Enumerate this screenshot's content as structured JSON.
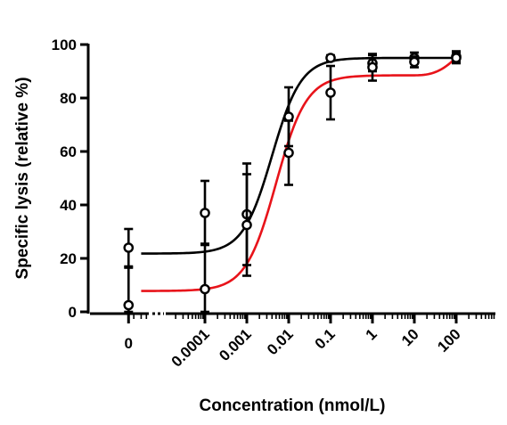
{
  "chart_data": {
    "type": "scatter",
    "xlabel": "Concentration (nmol/L)",
    "ylabel": "Specific lysis (relative %)",
    "xscale": "log",
    "xlim": [
      5e-07,
      800
    ],
    "ylim": [
      0,
      100
    ],
    "x_tick_values": [
      1.5e-06,
      0.0001,
      0.001,
      0.01,
      0.1,
      1,
      10,
      100
    ],
    "x_tick_labels": [
      "0",
      "0.0001",
      "0.001",
      "0.01",
      "0.1",
      "1",
      "10",
      "100"
    ],
    "y_tick_values": [
      0,
      20,
      40,
      60,
      80,
      100
    ],
    "y_tick_labels": [
      "0",
      "20",
      "40",
      "60",
      "80",
      "100"
    ],
    "zero_label_note": "first x tick labeled 0 represents zero concentration on an axis break",
    "points": [
      {
        "x": 1.5e-06,
        "y": 24,
        "err": 7
      },
      {
        "x": 1.5e-06,
        "y": 2.5,
        "err": 14
      },
      {
        "x": 0.0001,
        "y": 37,
        "err": 12
      },
      {
        "x": 0.0001,
        "y": 8.5,
        "err": 17
      },
      {
        "x": 0.001,
        "y": 36.5,
        "err": 19
      },
      {
        "x": 0.001,
        "y": 32.5,
        "err": 19
      },
      {
        "x": 0.01,
        "y": 73,
        "err": 11
      },
      {
        "x": 0.01,
        "y": 59.5,
        "err": 12
      },
      {
        "x": 0.1,
        "y": 95,
        "err": 1
      },
      {
        "x": 0.1,
        "y": 82,
        "err": 10
      },
      {
        "x": 1,
        "y": 93,
        "err": 3
      },
      {
        "x": 1,
        "y": 91.5,
        "err": 5
      },
      {
        "x": 10,
        "y": 95,
        "err": 2
      },
      {
        "x": 10,
        "y": 93.5,
        "err": 2
      },
      {
        "x": 100,
        "y": 95.5,
        "err": 2
      },
      {
        "x": 100,
        "y": 95,
        "err": 2
      }
    ],
    "fits": [
      {
        "color": "#000000",
        "bottom": 21.8,
        "top": 95,
        "ec50": 0.004,
        "hill": 1.25,
        "x_start": 3e-06,
        "x_end": 110
      },
      {
        "color": "#e8131a",
        "bottom": 7.8,
        "top": 88.5,
        "ec50": 0.005,
        "hill": 1.2,
        "x_start": 3e-06,
        "x_end": 110,
        "upturn_to": 96
      }
    ]
  }
}
